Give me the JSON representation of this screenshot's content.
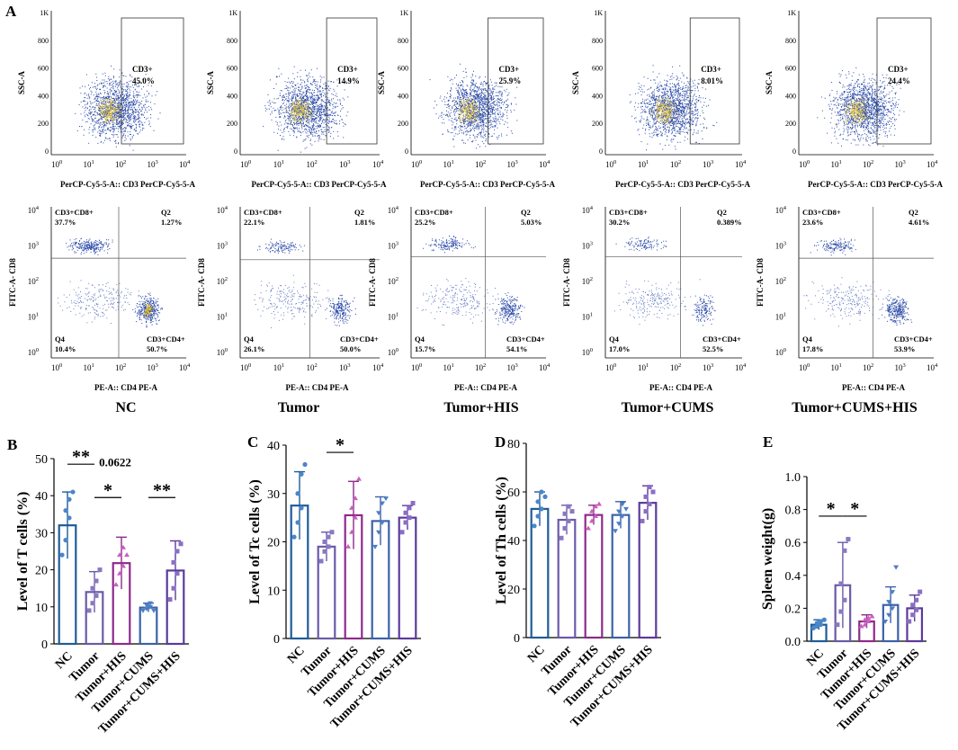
{
  "flow_panel_label": "A",
  "groups": [
    "NC",
    "Tumor",
    "Tumor+HIS",
    "Tumor+CUMS",
    "Tumor+CUMS+HIS"
  ],
  "flow_top": {
    "ylabel": "SSC-A",
    "xlabel": "PerCP-Cy5-5-A:: CD3 PerCP-Cy5-5-A",
    "yticks": [
      "1K",
      "800",
      "600",
      "400",
      "200",
      "0"
    ],
    "xticks": [
      "10",
      "0",
      "10",
      "1",
      "10",
      "2",
      "10",
      "3",
      "10",
      "4"
    ],
    "gate_label": "CD3+",
    "percents": [
      "45.0%",
      "14.9%",
      "25.9%",
      "8.01%",
      "24.4%"
    ]
  },
  "flow_bottom": {
    "ylabel": "FITC-A- CD8",
    "xlabel": "PE-A:: CD4 PE-A",
    "ytick_base": "10",
    "ytick_exp": [
      "4",
      "3",
      "2",
      "1",
      "0"
    ],
    "xtick_base": "10",
    "xtick_exp": [
      "0",
      "1",
      "2",
      "3",
      "4"
    ],
    "q1_label": "CD3+CD8+",
    "q2_label": "Q2",
    "q3_label": "CD3+CD4+",
    "q4_label": "Q4",
    "q1": [
      "37.7%",
      "22.1%",
      "25.2%",
      "30.2%",
      "23.6%"
    ],
    "q2": [
      "1.27%",
      "1.81%",
      "5.03%",
      "0.389%",
      "4.61%"
    ],
    "q3": [
      "50.7%",
      "50.0%",
      "54.1%",
      "52.5%",
      "53.9%"
    ],
    "q4": [
      "10.4%",
      "26.1%",
      "15.7%",
      "17.0%",
      "17.8%"
    ]
  },
  "colors": {
    "bar": [
      "#1f5c99",
      "#6a5aa8",
      "#8e2a8a",
      "#3b62a8",
      "#5b3a9a"
    ],
    "point": [
      "#4a86c8",
      "#8a78c0",
      "#c860c0",
      "#4c7ec4",
      "#8a6ec4"
    ],
    "flow_dot": "#2b4aa8",
    "flow_dense": "#e6c020"
  },
  "chart_data": [
    {
      "panel": "B",
      "type": "bar",
      "categories": [
        "NC",
        "Tumor",
        "Tumor+HIS",
        "Tumor+CUMS",
        "Tumor+CUMS+HIS"
      ],
      "values": [
        32.0,
        14.0,
        21.8,
        9.8,
        19.8
      ],
      "errors": [
        9.0,
        5.5,
        7.0,
        1.2,
        8.0
      ],
      "points": [
        [
          24,
          28,
          34,
          36,
          39,
          41
        ],
        [
          9,
          11,
          13,
          15,
          17,
          20
        ],
        [
          16,
          19,
          21,
          24,
          26,
          24
        ],
        [
          9,
          9.5,
          10,
          10.5,
          11,
          9
        ],
        [
          12,
          15,
          19,
          22,
          25,
          27
        ]
      ],
      "ylabel": "Level of T cells (%)",
      "ylim": [
        0,
        50
      ],
      "yticks": [
        "0",
        "10",
        "20",
        "30",
        "40",
        "50"
      ],
      "annotations": [
        {
          "from": 0,
          "to": 1,
          "text": "**",
          "y": 48.5
        },
        {
          "from": 1,
          "to": 2,
          "text": "0.0622",
          "y": 47.5
        },
        {
          "from": 1,
          "to": 2,
          "text": "*",
          "y": 39.5
        },
        {
          "from": 3,
          "to": 4,
          "text": "**",
          "y": 39.5
        }
      ]
    },
    {
      "panel": "C",
      "type": "bar",
      "categories": [
        "NC",
        "Tumor",
        "Tumor+HIS",
        "Tumor+CUMS",
        "Tumor+CUMS+HIS"
      ],
      "values": [
        27.5,
        19.0,
        25.5,
        24.3,
        25.0
      ],
      "errors": [
        7.0,
        3.0,
        7.0,
        5.0,
        2.5
      ],
      "points": [
        [
          21,
          24,
          27,
          30,
          34,
          36
        ],
        [
          16,
          18,
          19,
          20,
          21,
          22
        ],
        [
          19,
          22,
          25,
          27,
          29,
          33
        ],
        [
          19,
          22,
          24,
          26,
          28,
          29
        ],
        [
          22,
          24,
          25,
          26,
          27,
          28
        ]
      ],
      "ylabel": "Level of Tc cells (%)",
      "ylim": [
        0,
        40
      ],
      "yticks": [
        "0",
        "10",
        "20",
        "30",
        "40"
      ],
      "annotations": [
        {
          "from": 1,
          "to": 2,
          "text": "*",
          "y": 38.5
        }
      ]
    },
    {
      "panel": "D",
      "type": "bar",
      "categories": [
        "NC",
        "Tumor",
        "Tumor+HIS",
        "Tumor+CUMS",
        "Tumor+CUMS+HIS"
      ],
      "values": [
        53.0,
        48.5,
        50.5,
        50.5,
        55.5
      ],
      "errors": [
        7.0,
        6.0,
        4.0,
        5.5,
        7.0
      ],
      "points": [
        [
          46,
          50,
          53,
          56,
          60,
          58
        ],
        [
          41,
          45,
          48,
          51,
          54,
          52
        ],
        [
          45,
          48,
          50,
          52,
          54,
          55
        ],
        [
          44,
          47,
          50,
          52,
          55,
          53
        ],
        [
          48,
          52,
          55,
          58,
          62,
          60
        ]
      ],
      "ylabel": "Level of Th cells (%)",
      "ylim": [
        0,
        80
      ],
      "yticks": [
        "0",
        "20",
        "40",
        "60",
        "80"
      ],
      "annotations": []
    },
    {
      "panel": "E",
      "type": "bar",
      "categories": [
        "NC",
        "Tumor",
        "Tumor+HIS",
        "Tumor+CUMS",
        "Tumor+CUMS+HIS"
      ],
      "values": [
        0.1,
        0.34,
        0.12,
        0.22,
        0.2
      ],
      "errors": [
        0.03,
        0.26,
        0.04,
        0.11,
        0.08
      ],
      "points": [
        [
          0.08,
          0.09,
          0.1,
          0.11,
          0.12,
          0.13
        ],
        [
          0.1,
          0.18,
          0.25,
          0.35,
          0.55,
          0.62
        ],
        [
          0.09,
          0.1,
          0.12,
          0.13,
          0.14,
          0.15
        ],
        [
          0.12,
          0.16,
          0.2,
          0.24,
          0.3,
          0.45
        ],
        [
          0.12,
          0.16,
          0.19,
          0.22,
          0.25,
          0.3
        ]
      ],
      "ylabel": "Spleen weight(g)",
      "ylim": [
        0,
        1.0
      ],
      "yticks": [
        "0.0",
        "0.2",
        "0.4",
        "0.6",
        "0.8",
        "1.0"
      ],
      "annotations": [
        {
          "from": 0,
          "to": 1,
          "text": "*",
          "y": 0.76
        },
        {
          "from": 1,
          "to": 2,
          "text": "*",
          "y": 0.76
        }
      ]
    }
  ]
}
